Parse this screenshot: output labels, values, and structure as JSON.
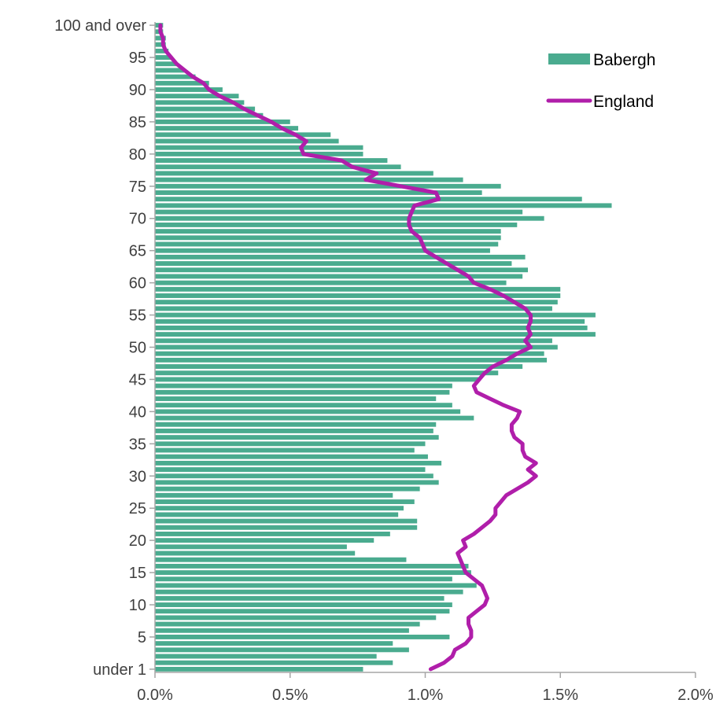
{
  "chart_data": {
    "type": "bar",
    "orientation": "horizontal",
    "categories": [
      "under 1",
      "1",
      "2",
      "3",
      "4",
      "5",
      "6",
      "7",
      "8",
      "9",
      "10",
      "11",
      "12",
      "13",
      "14",
      "15",
      "16",
      "17",
      "18",
      "19",
      "20",
      "21",
      "22",
      "23",
      "24",
      "25",
      "26",
      "27",
      "28",
      "29",
      "30",
      "31",
      "32",
      "33",
      "34",
      "35",
      "36",
      "37",
      "38",
      "39",
      "40",
      "41",
      "42",
      "43",
      "44",
      "45",
      "46",
      "47",
      "48",
      "49",
      "50",
      "51",
      "52",
      "53",
      "54",
      "55",
      "56",
      "57",
      "58",
      "59",
      "60",
      "61",
      "62",
      "63",
      "64",
      "65",
      "66",
      "67",
      "68",
      "69",
      "70",
      "71",
      "72",
      "73",
      "74",
      "75",
      "76",
      "77",
      "78",
      "79",
      "80",
      "81",
      "82",
      "83",
      "84",
      "85",
      "86",
      "87",
      "88",
      "89",
      "90",
      "91",
      "92",
      "93",
      "94",
      "95",
      "96",
      "97",
      "98",
      "99",
      "100 and over"
    ],
    "y_tick_labels": [
      "under 1",
      "5",
      "10",
      "15",
      "20",
      "25",
      "30",
      "35",
      "40",
      "45",
      "50",
      "55",
      "60",
      "65",
      "70",
      "75",
      "80",
      "85",
      "90",
      "95",
      "100 and over"
    ],
    "y_tick_ages": [
      0,
      5,
      10,
      15,
      20,
      25,
      30,
      35,
      40,
      45,
      50,
      55,
      60,
      65,
      70,
      75,
      80,
      85,
      90,
      95,
      100
    ],
    "x_tick_labels": [
      "0.0%",
      "0.5%",
      "1.0%",
      "1.5%",
      "2.0%"
    ],
    "xlim": [
      0,
      2.0
    ],
    "grid": false,
    "legend_position": "top-right",
    "series": [
      {
        "name": "Babergh",
        "kind": "bar",
        "color": "#4aab8f",
        "values": [
          0.77,
          0.88,
          0.82,
          0.94,
          0.88,
          1.09,
          0.94,
          0.98,
          1.04,
          1.09,
          1.1,
          1.07,
          1.14,
          1.19,
          1.1,
          1.17,
          1.16,
          0.93,
          0.74,
          0.71,
          0.81,
          0.87,
          0.97,
          0.97,
          0.9,
          0.92,
          0.96,
          0.88,
          0.98,
          1.05,
          1.03,
          1.0,
          1.06,
          1.01,
          0.96,
          1.0,
          1.05,
          1.03,
          1.04,
          1.18,
          1.13,
          1.1,
          1.04,
          1.09,
          1.1,
          1.2,
          1.27,
          1.36,
          1.45,
          1.44,
          1.49,
          1.47,
          1.63,
          1.6,
          1.59,
          1.63,
          1.47,
          1.49,
          1.5,
          1.5,
          1.3,
          1.36,
          1.38,
          1.32,
          1.37,
          1.24,
          1.27,
          1.28,
          1.28,
          1.34,
          1.44,
          1.36,
          1.69,
          1.58,
          1.21,
          1.28,
          1.14,
          1.03,
          0.91,
          0.86,
          0.77,
          0.77,
          0.68,
          0.65,
          0.53,
          0.5,
          0.4,
          0.37,
          0.33,
          0.31,
          0.25,
          0.2,
          0.15,
          0.11,
          0.08,
          0.06,
          0.05,
          0.04,
          0.04,
          0.03,
          0.03
        ]
      },
      {
        "name": "England",
        "kind": "line",
        "color": "#b01eaa",
        "values": [
          1.02,
          1.07,
          1.1,
          1.11,
          1.15,
          1.17,
          1.17,
          1.16,
          1.16,
          1.19,
          1.22,
          1.23,
          1.22,
          1.21,
          1.18,
          1.15,
          1.14,
          1.13,
          1.12,
          1.15,
          1.14,
          1.18,
          1.21,
          1.24,
          1.26,
          1.26,
          1.28,
          1.3,
          1.34,
          1.38,
          1.41,
          1.38,
          1.41,
          1.37,
          1.36,
          1.36,
          1.33,
          1.32,
          1.32,
          1.34,
          1.35,
          1.29,
          1.24,
          1.19,
          1.18,
          1.2,
          1.22,
          1.25,
          1.3,
          1.34,
          1.39,
          1.37,
          1.39,
          1.38,
          1.39,
          1.39,
          1.37,
          1.33,
          1.29,
          1.24,
          1.18,
          1.16,
          1.12,
          1.08,
          1.04,
          1.0,
          0.99,
          0.98,
          0.95,
          0.94,
          0.94,
          0.95,
          0.96,
          1.05,
          1.04,
          0.91,
          0.78,
          0.82,
          0.73,
          0.69,
          0.55,
          0.54,
          0.56,
          0.52,
          0.47,
          0.43,
          0.38,
          0.33,
          0.29,
          0.24,
          0.2,
          0.18,
          0.14,
          0.11,
          0.08,
          0.06,
          0.04,
          0.03,
          0.03,
          0.02,
          0.02
        ]
      }
    ]
  }
}
